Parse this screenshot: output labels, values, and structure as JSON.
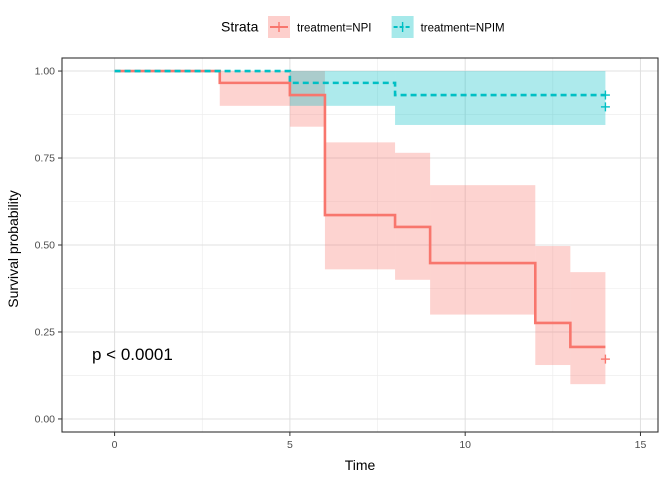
{
  "chart_data": {
    "type": "line",
    "subtype": "kaplan-meier survival curve with confidence bands",
    "xlabel": "Time",
    "ylabel": "Survival probability",
    "xlim": [
      -1.5,
      15.5
    ],
    "ylim": [
      -0.0375,
      1.0375
    ],
    "x_ticks": [
      0,
      5,
      10,
      15
    ],
    "x_tick_labels": [
      "0",
      "5",
      "10",
      "15"
    ],
    "y_ticks": [
      0,
      0.25,
      0.5,
      0.75,
      1.0
    ],
    "y_tick_labels": [
      "0.00",
      "0.25",
      "0.50",
      "0.75",
      "1.00"
    ],
    "grid": true,
    "legend": {
      "title": "Strata",
      "position": "top"
    },
    "annotation": "p < 0.0001",
    "series": [
      {
        "name": "treatment=NPI",
        "color": "#F8766D",
        "line_style": "solid",
        "steps": [
          {
            "x": 0,
            "y": 1.0
          },
          {
            "x": 3,
            "y": 0.966
          },
          {
            "x": 5,
            "y": 0.931
          },
          {
            "x": 6,
            "y": 0.586
          },
          {
            "x": 8,
            "y": 0.552
          },
          {
            "x": 9,
            "y": 0.448
          },
          {
            "x": 12,
            "y": 0.276
          },
          {
            "x": 13,
            "y": 0.207
          }
        ],
        "end_x": 14,
        "lower": [
          1.0,
          0.9,
          0.84,
          0.43,
          0.4,
          0.3,
          0.155,
          0.1
        ],
        "upper": [
          1.0,
          1.0,
          1.0,
          0.795,
          0.765,
          0.672,
          0.497,
          0.422
        ],
        "censor": [
          {
            "x": 14,
            "y": 0.172
          }
        ]
      },
      {
        "name": "treatment=NPIM",
        "color": "#00BFC4",
        "line_style": "dashed",
        "steps": [
          {
            "x": 0,
            "y": 1.0
          },
          {
            "x": 5,
            "y": 0.966
          },
          {
            "x": 8,
            "y": 0.931
          }
        ],
        "end_x": 14,
        "lower": [
          1.0,
          0.9,
          0.845
        ],
        "upper": [
          1.0,
          1.0,
          1.0
        ],
        "censor": [
          {
            "x": 14,
            "y": 0.931
          },
          {
            "x": 14,
            "y": 0.897
          }
        ]
      }
    ]
  }
}
